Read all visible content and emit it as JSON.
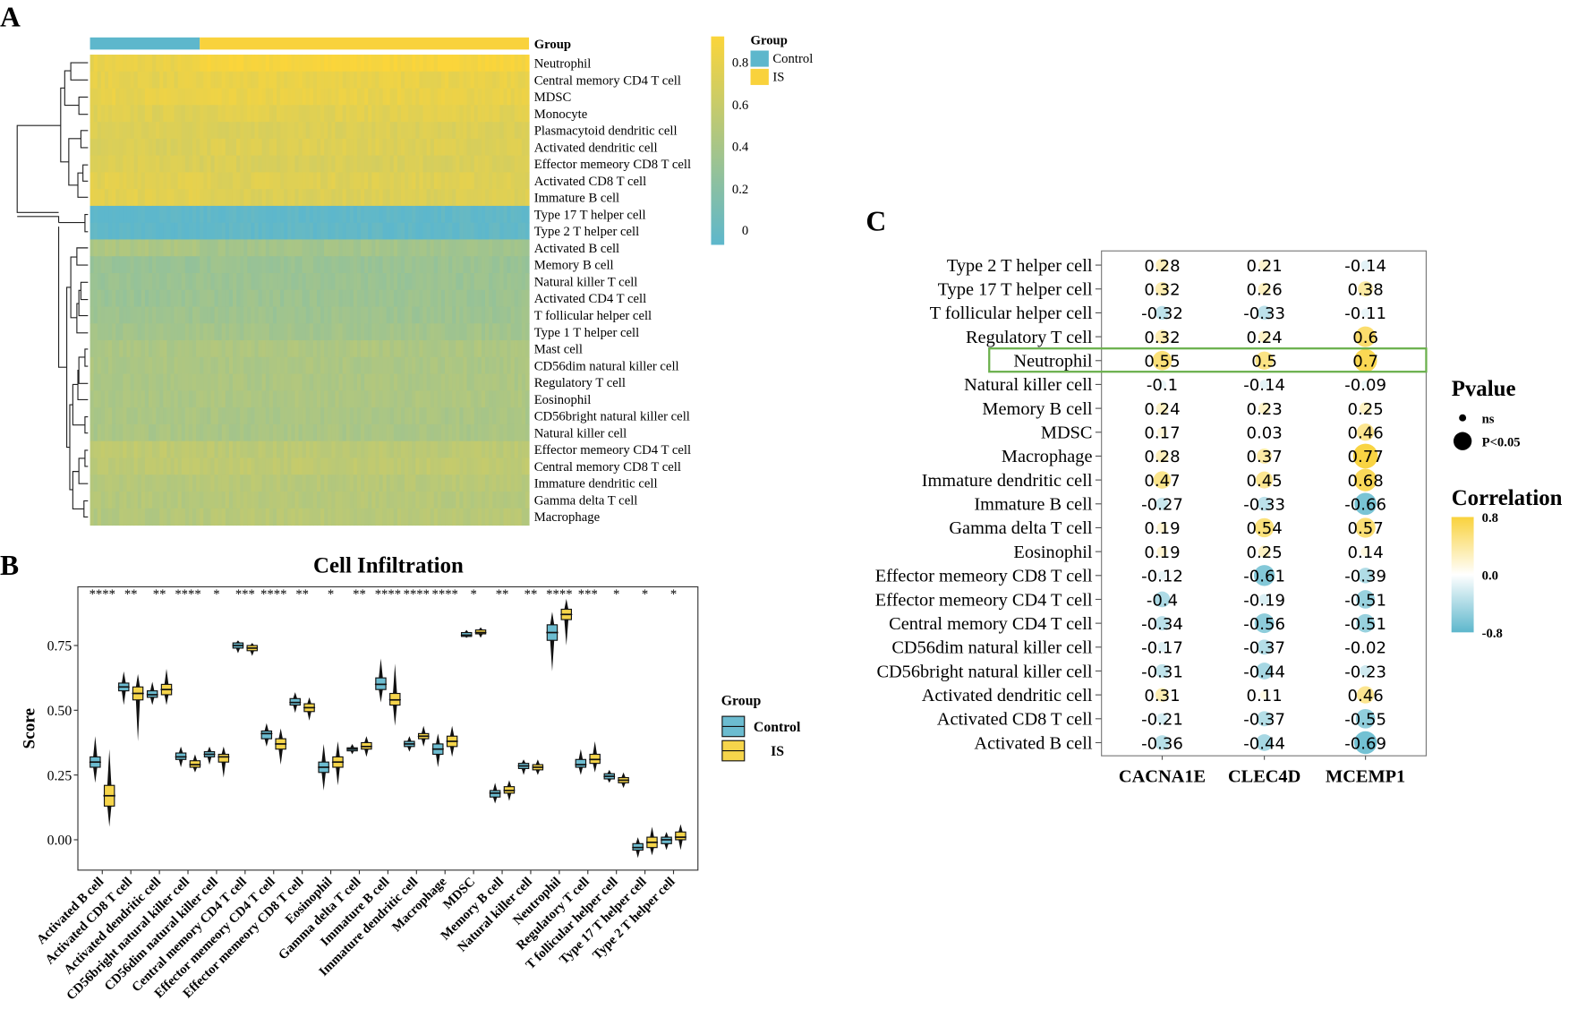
{
  "panels": {
    "a": "A",
    "b": "B",
    "c": "C"
  },
  "chart_data": [
    {
      "type": "heatmap",
      "panel": "A",
      "group_label": "Group",
      "groups": [
        {
          "name": "Control",
          "color": "#5db7cc",
          "fraction": 0.25
        },
        {
          "name": "IS",
          "color": "#f9d23c",
          "fraction": 0.75
        }
      ],
      "colorbar": {
        "ticks": [
          "0.8",
          "0.6",
          "0.4",
          "0.2",
          "0"
        ],
        "range": [
          0,
          0.9
        ],
        "low": "#5db7cc",
        "high": "#fbd53a"
      },
      "rows": [
        {
          "name": "Neutrophil",
          "control": 0.8,
          "is": 0.88
        },
        {
          "name": "Central memory CD4 T cell",
          "control": 0.78,
          "is": 0.8
        },
        {
          "name": "MDSC",
          "control": 0.79,
          "is": 0.8
        },
        {
          "name": "Monocyte",
          "control": 0.74,
          "is": 0.76
        },
        {
          "name": "Plasmacytoid dendritic cell",
          "control": 0.72,
          "is": 0.72
        },
        {
          "name": "Activated dendritic cell",
          "control": 0.71,
          "is": 0.73
        },
        {
          "name": "Effector memeory CD8 T cell",
          "control": 0.72,
          "is": 0.71
        },
        {
          "name": "Activated CD8 T cell",
          "control": 0.76,
          "is": 0.74
        },
        {
          "name": "Immature  B cell",
          "control": 0.76,
          "is": 0.72
        },
        {
          "name": "Type 17 T helper cell",
          "control": 0.0,
          "is": 0.02
        },
        {
          "name": "Type 2 T helper cell",
          "control": 0.01,
          "is": 0.03
        },
        {
          "name": "Activated B cell",
          "control": 0.46,
          "is": 0.4
        },
        {
          "name": "Memory B cell",
          "control": 0.34,
          "is": 0.35
        },
        {
          "name": "Natural killer T cell",
          "control": 0.35,
          "is": 0.35
        },
        {
          "name": "Activated CD4 T cell",
          "control": 0.35,
          "is": 0.36
        },
        {
          "name": "T follicular helper cell",
          "control": 0.38,
          "is": 0.37
        },
        {
          "name": "Type 1 T helper cell",
          "control": 0.4,
          "is": 0.4
        },
        {
          "name": "Mast cell",
          "control": 0.45,
          "is": 0.46
        },
        {
          "name": "CD56dim natural killer cell",
          "control": 0.45,
          "is": 0.45
        },
        {
          "name": "Regulatory T cell",
          "control": 0.44,
          "is": 0.45
        },
        {
          "name": "Eosinophil",
          "control": 0.44,
          "is": 0.46
        },
        {
          "name": "CD56bright natural killer cell",
          "control": 0.45,
          "is": 0.44
        },
        {
          "name": "Natural killer cell",
          "control": 0.44,
          "is": 0.44
        },
        {
          "name": "Effector memeory CD4 T cell",
          "control": 0.56,
          "is": 0.54
        },
        {
          "name": "Central memory CD8 T cell",
          "control": 0.55,
          "is": 0.56
        },
        {
          "name": "Immature dendritic cell",
          "control": 0.5,
          "is": 0.52
        },
        {
          "name": "Gamma delta T cell",
          "control": 0.5,
          "is": 0.51
        },
        {
          "name": "Macrophage",
          "control": 0.49,
          "is": 0.52
        }
      ]
    },
    {
      "type": "box",
      "panel": "B",
      "title": "Cell Infiltration",
      "ylabel": "Score",
      "xlabel": "",
      "ylim": [
        -0.12,
        0.97
      ],
      "yticks": [
        "0.00",
        "0.25",
        "0.50",
        "0.75"
      ],
      "legend": {
        "title": "Group",
        "position": "right",
        "items": [
          {
            "name": "Control",
            "color": "#6cbcd0"
          },
          {
            "name": "IS",
            "color": "#f6d54b"
          }
        ]
      },
      "categories": [
        {
          "name": "Activated B cell",
          "sig": "****",
          "control": [
            0.22,
            0.28,
            0.3,
            0.32,
            0.4
          ],
          "is": [
            0.05,
            0.13,
            0.17,
            0.21,
            0.35
          ]
        },
        {
          "name": "Activated CD8 T cell",
          "sig": "**",
          "control": [
            0.52,
            0.575,
            0.59,
            0.605,
            0.65
          ],
          "is": [
            0.38,
            0.54,
            0.565,
            0.59,
            0.64
          ]
        },
        {
          "name": "Activated dendritic cell",
          "sig": "**",
          "control": [
            0.52,
            0.55,
            0.56,
            0.575,
            0.61
          ],
          "is": [
            0.52,
            0.56,
            0.58,
            0.6,
            0.66
          ]
        },
        {
          "name": "CD56bright natural killer cell",
          "sig": "****",
          "control": [
            0.28,
            0.31,
            0.32,
            0.335,
            0.36
          ],
          "is": [
            0.26,
            0.28,
            0.29,
            0.305,
            0.33
          ]
        },
        {
          "name": "CD56dim natural killer cell",
          "sig": "*",
          "control": [
            0.29,
            0.32,
            0.33,
            0.34,
            0.36
          ],
          "is": [
            0.24,
            0.3,
            0.32,
            0.33,
            0.36
          ]
        },
        {
          "name": "Central memory CD4 T cell",
          "sig": "***",
          "control": [
            0.72,
            0.74,
            0.75,
            0.76,
            0.77
          ],
          "is": [
            0.71,
            0.73,
            0.74,
            0.75,
            0.76
          ]
        },
        {
          "name": "Effector memeory CD4 T cell",
          "sig": "****",
          "control": [
            0.36,
            0.39,
            0.41,
            0.42,
            0.45
          ],
          "is": [
            0.29,
            0.35,
            0.37,
            0.39,
            0.43
          ]
        },
        {
          "name": "Effector memeory CD8 T cell",
          "sig": "**",
          "control": [
            0.49,
            0.52,
            0.53,
            0.545,
            0.57
          ],
          "is": [
            0.46,
            0.495,
            0.51,
            0.525,
            0.55
          ]
        },
        {
          "name": "Eosinophil",
          "sig": "*",
          "control": [
            0.19,
            0.26,
            0.28,
            0.3,
            0.37
          ],
          "is": [
            0.21,
            0.28,
            0.3,
            0.32,
            0.38
          ]
        },
        {
          "name": "Gamma delta T cell",
          "sig": "**",
          "control": [
            0.33,
            0.345,
            0.35,
            0.355,
            0.37
          ],
          "is": [
            0.32,
            0.35,
            0.36,
            0.375,
            0.4
          ]
        },
        {
          "name": "Immature  B cell",
          "sig": "****",
          "control": [
            0.53,
            0.58,
            0.6,
            0.625,
            0.7
          ],
          "is": [
            0.44,
            0.52,
            0.54,
            0.565,
            0.68
          ]
        },
        {
          "name": "Immature dendritic cell",
          "sig": "****",
          "control": [
            0.34,
            0.36,
            0.37,
            0.38,
            0.4
          ],
          "is": [
            0.36,
            0.39,
            0.4,
            0.41,
            0.44
          ]
        },
        {
          "name": "Macrophage",
          "sig": "****",
          "control": [
            0.28,
            0.33,
            0.35,
            0.37,
            0.41
          ],
          "is": [
            0.32,
            0.36,
            0.38,
            0.4,
            0.44
          ]
        },
        {
          "name": "MDSC",
          "sig": "*",
          "control": [
            0.78,
            0.785,
            0.79,
            0.8,
            0.81
          ],
          "is": [
            0.78,
            0.795,
            0.8,
            0.81,
            0.82
          ]
        },
        {
          "name": "Memory B cell",
          "sig": "**",
          "control": [
            0.14,
            0.165,
            0.18,
            0.19,
            0.22
          ],
          "is": [
            0.15,
            0.18,
            0.19,
            0.205,
            0.23
          ]
        },
        {
          "name": "Natural killer cell",
          "sig": "**",
          "control": [
            0.25,
            0.275,
            0.285,
            0.295,
            0.31
          ],
          "is": [
            0.25,
            0.27,
            0.28,
            0.29,
            0.31
          ]
        },
        {
          "name": "Neutrophil",
          "sig": "****",
          "control": [
            0.65,
            0.77,
            0.8,
            0.83,
            0.88
          ],
          "is": [
            0.75,
            0.85,
            0.87,
            0.89,
            0.93
          ]
        },
        {
          "name": "Regulatory T cell",
          "sig": "***",
          "control": [
            0.25,
            0.28,
            0.29,
            0.31,
            0.35
          ],
          "is": [
            0.26,
            0.295,
            0.31,
            0.33,
            0.38
          ]
        },
        {
          "name": "T follicular helper cell",
          "sig": "*",
          "control": [
            0.22,
            0.235,
            0.245,
            0.255,
            0.27
          ],
          "is": [
            0.2,
            0.22,
            0.23,
            0.24,
            0.26
          ]
        },
        {
          "name": "Type 17 T helper cell",
          "sig": "*",
          "control": [
            -0.07,
            -0.04,
            -0.03,
            -0.015,
            0.01
          ],
          "is": [
            -0.06,
            -0.03,
            -0.01,
            0.01,
            0.05
          ]
        },
        {
          "name": "Type 2 T helper cell",
          "sig": "*",
          "control": [
            -0.04,
            -0.015,
            0.0,
            0.01,
            0.03
          ],
          "is": [
            -0.04,
            0.0,
            0.01,
            0.03,
            0.06
          ]
        }
      ]
    },
    {
      "type": "correlation-dot",
      "panel": "C",
      "columns": [
        "CACNA1E",
        "CLEC4D",
        "MCEMP1"
      ],
      "highlight_row": "Neutrophil",
      "rows": [
        {
          "name": "Type 2 T helper cell",
          "values": [
            "0.28",
            "0.21",
            "-0.14"
          ]
        },
        {
          "name": "Type 17 T helper cell",
          "values": [
            "0.32",
            "0.26",
            "0.38"
          ]
        },
        {
          "name": "T follicular helper cell",
          "values": [
            "-0.32",
            "-0.33",
            "-0.11"
          ]
        },
        {
          "name": "Regulatory T cell",
          "values": [
            "0.32",
            "0.24",
            "0.6"
          ]
        },
        {
          "name": "Neutrophil",
          "values": [
            "0.55",
            "0.5",
            "0.7"
          ]
        },
        {
          "name": "Natural killer cell",
          "values": [
            "-0.1",
            "-0.14",
            "-0.09"
          ]
        },
        {
          "name": "Memory B cell",
          "values": [
            "0.24",
            "0.23",
            "0.25"
          ]
        },
        {
          "name": "MDSC",
          "values": [
            "0.17",
            "0.03",
            "0.46"
          ]
        },
        {
          "name": "Macrophage",
          "values": [
            "0.28",
            "0.37",
            "0.77"
          ]
        },
        {
          "name": "Immature dendritic cell",
          "values": [
            "0.47",
            "0.45",
            "0.68"
          ]
        },
        {
          "name": "Immature  B cell",
          "values": [
            "-0.27",
            "-0.33",
            "-0.66"
          ]
        },
        {
          "name": "Gamma delta T cell",
          "values": [
            "0.19",
            "0.54",
            "0.57"
          ]
        },
        {
          "name": "Eosinophil",
          "values": [
            "0.19",
            "0.25",
            "0.14"
          ]
        },
        {
          "name": "Effector memeory CD8 T cell",
          "values": [
            "-0.12",
            "-0.61",
            "-0.39"
          ]
        },
        {
          "name": "Effector memeory CD4 T cell",
          "values": [
            "-0.4",
            "-0.19",
            "-0.51"
          ]
        },
        {
          "name": "Central memory CD4 T cell",
          "values": [
            "-0.34",
            "-0.56",
            "-0.51"
          ]
        },
        {
          "name": "CD56dim natural killer cell",
          "values": [
            "-0.17",
            "-0.37",
            "-0.02"
          ]
        },
        {
          "name": "CD56bright natural killer cell",
          "values": [
            "-0.31",
            "-0.44",
            "-0.23"
          ]
        },
        {
          "name": "Activated dendritic cell",
          "values": [
            "0.31",
            "0.11",
            "0.46"
          ]
        },
        {
          "name": "Activated CD8 T cell",
          "values": [
            "-0.21",
            "-0.37",
            "-0.55"
          ]
        },
        {
          "name": "Activated B cell",
          "values": [
            "-0.36",
            "-0.44",
            "-0.69"
          ]
        }
      ],
      "pvalue_legend": {
        "title": "Pvalue",
        "items": [
          "ns",
          "P<0.05"
        ]
      },
      "correlation_legend": {
        "title": "Correlation",
        "ticks": [
          "0.8",
          "0.0",
          "-0.8"
        ],
        "pos": "#f9d23c",
        "neg": "#5db7cc"
      }
    }
  ]
}
